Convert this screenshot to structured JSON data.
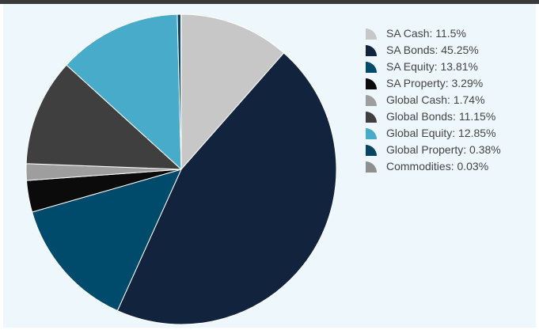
{
  "chart_data": {
    "type": "pie",
    "slices": [
      {
        "label": "SA Cash",
        "value": 11.5,
        "color": "#c7c7c7",
        "legend_text": "SA Cash: 11.5%"
      },
      {
        "label": "SA Bonds",
        "value": 45.25,
        "color": "#12233d",
        "legend_text": "SA Bonds: 45.25%"
      },
      {
        "label": "SA Equity",
        "value": 13.81,
        "color": "#004a6b",
        "legend_text": "SA Equity: 13.81%"
      },
      {
        "label": "SA Property",
        "value": 3.29,
        "color": "#0b0b0b",
        "legend_text": "SA Property: 3.29%"
      },
      {
        "label": "Global Cash",
        "value": 1.74,
        "color": "#9e9e9e",
        "legend_text": "Global Cash: 1.74%"
      },
      {
        "label": "Global Bonds",
        "value": 11.15,
        "color": "#3f3f3f",
        "legend_text": "Global Bonds: 11.15%"
      },
      {
        "label": "Global Equity",
        "value": 12.85,
        "color": "#47abc9",
        "legend_text": "Global Equity: 12.85%"
      },
      {
        "label": "Global Property",
        "value": 0.38,
        "color": "#0a4463",
        "legend_text": "Global Property: 0.38%"
      },
      {
        "label": "Commodities",
        "value": 0.03,
        "color": "#8f8f8f",
        "legend_text": "Commodities: 0.03%"
      }
    ],
    "start_angle_deg": 0,
    "direction": "clockwise",
    "legend_position": "right",
    "slice_border_color": "#ffffff"
  }
}
